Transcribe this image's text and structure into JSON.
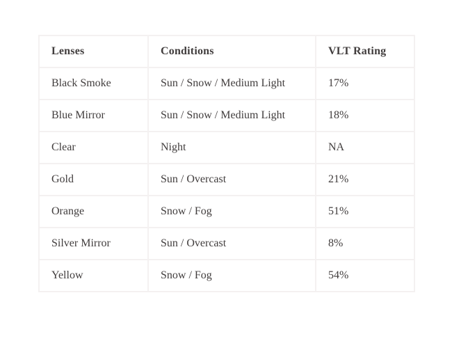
{
  "colors": {
    "background": "#ffffff",
    "text": "#413d3d",
    "border": "#f4f1f1"
  },
  "table": {
    "headers": [
      "Lenses",
      "Conditions",
      "VLT Rating"
    ],
    "rows": [
      {
        "lens": "Black Smoke",
        "conditions": "Sun / Snow / Medium Light",
        "vlt": "17%"
      },
      {
        "lens": "Blue Mirror",
        "conditions": "Sun / Snow / Medium Light",
        "vlt": "18%"
      },
      {
        "lens": "Clear",
        "conditions": "Night",
        "vlt": "NA"
      },
      {
        "lens": "Gold",
        "conditions": "Sun / Overcast",
        "vlt": "21%"
      },
      {
        "lens": "Orange",
        "conditions": "Snow / Fog",
        "vlt": "51%"
      },
      {
        "lens": "Silver Mirror",
        "conditions": "Sun / Overcast",
        "vlt": "8%"
      },
      {
        "lens": "Yellow",
        "conditions": "Snow / Fog",
        "vlt": "54%"
      }
    ]
  },
  "chart_data": {
    "type": "table",
    "title": "",
    "columns": [
      "Lenses",
      "Conditions",
      "VLT Rating"
    ],
    "rows": [
      [
        "Black Smoke",
        "Sun / Snow / Medium Light",
        "17%"
      ],
      [
        "Blue Mirror",
        "Sun / Snow / Medium Light",
        "18%"
      ],
      [
        "Clear",
        "Night",
        "NA"
      ],
      [
        "Gold",
        "Sun / Overcast",
        "21%"
      ],
      [
        "Orange",
        "Snow / Fog",
        "51%"
      ],
      [
        "Silver Mirror",
        "Sun / Overcast",
        "8%"
      ],
      [
        "Yellow",
        "Snow / Fog",
        "54%"
      ]
    ],
    "vlt_numeric": {
      "categories": [
        "Black Smoke",
        "Blue Mirror",
        "Clear",
        "Gold",
        "Orange",
        "Silver Mirror",
        "Yellow"
      ],
      "values_percent": [
        17,
        18,
        null,
        21,
        51,
        8,
        54
      ]
    },
    "layout_hints": {
      "grid": "light",
      "header_bold": true,
      "alignment": "left"
    }
  }
}
